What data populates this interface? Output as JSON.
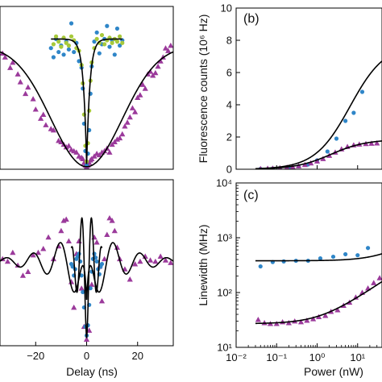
{
  "colors": {
    "purple": "#9b3a9b",
    "blue": "#2f86c8",
    "green": "#a7c93a",
    "fit": "#000000",
    "axis": "#000000"
  },
  "chart_data": [
    {
      "type": "scatter",
      "id": "a",
      "panel_label": "",
      "xlabel": "",
      "ylabel": "",
      "xlim": [
        -34,
        34
      ],
      "ylim": [
        0,
        1.25
      ],
      "x_ticks": [],
      "series": [
        {
          "marker": "triangle",
          "color": "purple",
          "x": [
            -33,
            -32,
            -30,
            -29,
            -27,
            -26,
            -24,
            -23,
            -21,
            -20,
            -18,
            -17,
            -16,
            -14,
            -13,
            -11,
            -10,
            -9,
            -8,
            -7,
            -6,
            -5,
            -4,
            -3,
            -2,
            -1.5,
            -1,
            -0.5,
            0,
            0.5,
            1,
            1.5,
            2,
            3,
            4,
            5,
            6,
            7,
            8,
            9,
            10,
            11,
            12,
            13,
            14,
            15,
            16,
            17,
            18,
            19,
            20,
            21,
            22,
            23,
            24,
            25,
            26,
            27,
            28,
            29,
            30,
            31,
            32,
            33
          ],
          "y": [
            0.89,
            0.86,
            0.78,
            0.82,
            0.73,
            0.67,
            0.58,
            0.63,
            0.54,
            0.46,
            0.39,
            0.42,
            0.34,
            0.31,
            0.3,
            0.22,
            0.21,
            0.19,
            0.17,
            0.18,
            0.15,
            0.14,
            0.13,
            0.1,
            0.09,
            0.08,
            0.05,
            0.03,
            0.02,
            0.03,
            0.05,
            0.07,
            0.08,
            0.1,
            0.12,
            0.11,
            0.13,
            0.14,
            0.16,
            0.13,
            0.19,
            0.21,
            0.23,
            0.24,
            0.27,
            0.33,
            0.36,
            0.4,
            0.47,
            0.44,
            0.55,
            0.57,
            0.65,
            0.62,
            0.73,
            0.75,
            0.72,
            0.74,
            0.79,
            0.83,
            0.86,
            0.93,
            0.91,
            0.95
          ]
        },
        {
          "marker": "circle",
          "color": "blue",
          "x": [
            -14,
            -13,
            -12,
            -11,
            -10,
            -9,
            -8,
            -7,
            -6,
            -5,
            -4,
            -3,
            -2,
            -1.5,
            -1,
            -0.5,
            0,
            0.5,
            1,
            1.5,
            2,
            3,
            4,
            5,
            6,
            7,
            8,
            9,
            10,
            11,
            12,
            13,
            14
          ],
          "y": [
            0.93,
            0.86,
            1.0,
            0.9,
            0.95,
            0.88,
            0.98,
            0.92,
            1.12,
            0.9,
            0.97,
            0.83,
            0.78,
            0.62,
            0.35,
            0.14,
            0.03,
            0.12,
            0.3,
            0.58,
            0.79,
            0.98,
            1.05,
            0.89,
            0.96,
            1.0,
            1.1,
            0.94,
            0.99,
            0.88,
            1.08,
            0.95,
            0.99
          ]
        },
        {
          "marker": "circle",
          "color": "green",
          "x": [
            -13,
            -12,
            -11,
            -10,
            -9,
            -8,
            -7,
            -6,
            -5,
            -4,
            -3,
            -2,
            -1.5,
            -1,
            -0.5,
            0,
            0.5,
            1,
            1.5,
            2,
            3,
            4,
            5,
            6,
            7,
            8,
            9,
            10,
            11,
            12,
            13,
            14
          ],
          "y": [
            0.96,
            1.02,
            0.98,
            0.94,
            1.01,
            0.97,
            0.95,
            1.02,
            0.99,
            0.93,
            0.91,
            0.8,
            0.66,
            0.42,
            0.18,
            0.06,
            0.2,
            0.45,
            0.68,
            0.82,
            0.93,
            1.0,
            0.97,
            1.03,
            0.96,
            0.99,
            1.01,
            0.97,
            1.0,
            0.98,
            1.02,
            0.97
          ]
        }
      ],
      "fits": [
        {
          "kind": "gaussian_dip",
          "color": "fit",
          "x_from": -34,
          "x_to": 34,
          "base": 0.95,
          "depth": 0.93,
          "width": 14
        },
        {
          "kind": "lorentzian_dip",
          "color": "fit",
          "x_from": -14,
          "x_to": 14,
          "base": 1.0,
          "depth": 0.96,
          "width": 1.3
        }
      ]
    },
    {
      "type": "scatter",
      "id": "d",
      "panel_label": "",
      "xlabel": "Delay (ns)",
      "ylabel": "",
      "xlim": [
        -34,
        34
      ],
      "ylim": [
        0,
        1.3
      ],
      "x_ticks": [
        -20,
        0,
        20
      ],
      "x_tick_labels": [
        "−20",
        "0",
        "20"
      ],
      "series": [
        {
          "marker": "triangle",
          "color": "purple",
          "x": [
            -33,
            -31,
            -29,
            -27,
            -25,
            -23,
            -21,
            -19,
            -17,
            -15,
            -13,
            -11,
            -10,
            -9,
            -8,
            -7,
            -6,
            -5,
            -4,
            -3,
            -2,
            -1,
            0,
            1,
            2,
            3,
            4,
            5,
            6,
            7,
            8,
            9,
            10,
            11,
            12,
            13,
            15,
            17,
            19,
            21,
            23,
            25,
            27,
            29,
            31,
            33
          ],
          "y": [
            0.68,
            0.66,
            0.73,
            0.63,
            0.55,
            0.58,
            0.71,
            0.73,
            0.76,
            0.85,
            0.68,
            0.78,
            0.9,
            0.98,
            0.99,
            0.82,
            0.5,
            0.3,
            0.72,
            0.82,
            0.45,
            0.15,
            0.05,
            0.12,
            0.48,
            0.85,
            0.81,
            0.62,
            0.35,
            0.68,
            0.87,
            1.0,
            0.98,
            0.9,
            0.77,
            0.68,
            0.6,
            0.52,
            0.64,
            0.66,
            0.7,
            0.67,
            0.66,
            0.7,
            0.67,
            0.65
          ]
        },
        {
          "marker": "circle",
          "color": "blue",
          "x": [
            -6,
            -5.5,
            -5,
            -4.5,
            -4,
            -3.5,
            -3,
            -2.5,
            -2,
            -1.5,
            -1,
            -0.5,
            0,
            0.5,
            1,
            1.5,
            2,
            2.5,
            3,
            3.5,
            4,
            4.5,
            5,
            5.5,
            6
          ],
          "y": [
            0.64,
            0.62,
            0.55,
            0.6,
            0.68,
            0.7,
            0.72,
            0.66,
            0.55,
            0.42,
            0.3,
            0.15,
            0.08,
            0.16,
            0.32,
            0.45,
            0.58,
            0.68,
            0.72,
            0.69,
            0.66,
            0.6,
            0.56,
            0.62,
            0.64
          ]
        }
      ],
      "fits": [
        {
          "kind": "damped_oscillation",
          "color": "fit",
          "x_from": -34,
          "x_to": 34,
          "base": 0.66,
          "amp": 0.6,
          "period": 10.5,
          "decay": 13,
          "dip_width": 1.4
        },
        {
          "kind": "oscillating_dip",
          "color": "fit",
          "x_from": -6,
          "x_to": 6,
          "base": 0.64,
          "amp": 0.58,
          "period": 3.9,
          "decay": 4
        }
      ]
    },
    {
      "type": "scatter",
      "id": "b",
      "panel_label": "(b)",
      "xlabel": "",
      "ylabel": "Fluorescence counts (10⁶ Hz)",
      "x_scale": "log",
      "xlim": [
        0.01,
        40
      ],
      "ylim": [
        0,
        10
      ],
      "y_ticks": [
        0,
        2,
        4,
        6,
        8,
        10
      ],
      "series": [
        {
          "marker": "circle",
          "color": "blue",
          "x": [
            0.04,
            0.08,
            0.12,
            0.2,
            0.35,
            0.6,
            1.0,
            1.8,
            3,
            5,
            8,
            13
          ],
          "y": [
            0.02,
            0.04,
            0.06,
            0.1,
            0.18,
            0.3,
            0.55,
            1.1,
            1.9,
            3.0,
            3.5,
            4.8
          ]
        },
        {
          "marker": "triangle",
          "color": "purple",
          "x": [
            0.04,
            0.06,
            0.08,
            0.12,
            0.18,
            0.25,
            0.35,
            0.5,
            0.7,
            1.0,
            1.4,
            2,
            2.8,
            4,
            5.6,
            8,
            11,
            16,
            22,
            30
          ],
          "y": [
            0.03,
            0.05,
            0.06,
            0.08,
            0.12,
            0.15,
            0.2,
            0.28,
            0.38,
            0.5,
            0.65,
            0.85,
            1.05,
            1.25,
            1.4,
            1.5,
            1.55,
            1.58,
            1.6,
            1.62
          ]
        }
      ],
      "fits": [
        {
          "kind": "saturation",
          "color": "fit",
          "x_from": 0.03,
          "x_to": 40,
          "rmax": 7.8,
          "psat": 6.5
        },
        {
          "kind": "saturation",
          "color": "fit",
          "x_from": 0.03,
          "x_to": 40,
          "rmax": 1.85,
          "psat": 2.2
        }
      ]
    },
    {
      "type": "scatter",
      "id": "c",
      "panel_label": "(c)",
      "xlabel": "Power (nW)",
      "ylabel": "Linewidth (MHz)",
      "x_scale": "log",
      "y_scale": "log",
      "xlim": [
        0.01,
        40
      ],
      "ylim": [
        10,
        10000
      ],
      "x_ticks": [
        0.01,
        0.1,
        1,
        10
      ],
      "x_tick_labels": [
        "10⁻²",
        "10⁻¹",
        "10⁰",
        "10¹"
      ],
      "y_ticks": [
        10,
        100,
        1000,
        10000
      ],
      "y_tick_labels": [
        "10¹",
        "10²",
        "10³",
        "10⁴"
      ],
      "series": [
        {
          "marker": "circle",
          "color": "blue",
          "x": [
            0.04,
            0.08,
            0.15,
            0.3,
            0.6,
            1.2,
            2.5,
            5,
            10,
            18
          ],
          "y": [
            300,
            360,
            370,
            380,
            380,
            420,
            450,
            500,
            480,
            650
          ]
        },
        {
          "marker": "triangle",
          "color": "purple",
          "x": [
            0.035,
            0.05,
            0.07,
            0.1,
            0.14,
            0.2,
            0.28,
            0.4,
            0.56,
            0.8,
            1.1,
            1.6,
            2.2,
            3.2,
            4.5,
            6.3,
            9,
            13,
            18,
            25,
            35
          ],
          "y": [
            32,
            28,
            27,
            27,
            29,
            28,
            30,
            29,
            31,
            33,
            36,
            38,
            45,
            48,
            58,
            66,
            82,
            100,
            120,
            150,
            185
          ]
        }
      ],
      "fits": [
        {
          "kind": "power_broadening",
          "color": "fit",
          "x_from": 0.03,
          "x_to": 40,
          "g0": 380,
          "psat": 50
        },
        {
          "kind": "power_broadening",
          "color": "fit",
          "x_from": 0.03,
          "x_to": 40,
          "g0": 27,
          "psat": 1.2
        }
      ]
    }
  ]
}
